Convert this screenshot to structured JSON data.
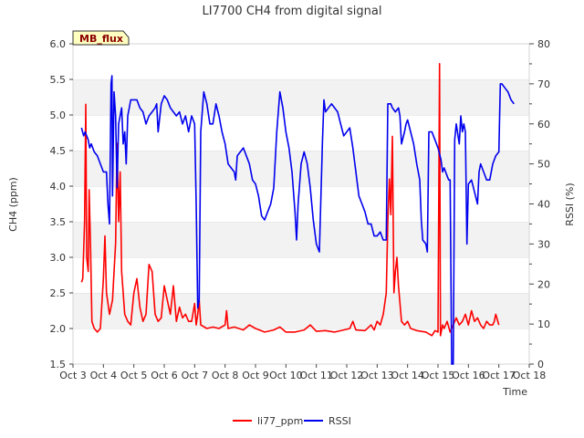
{
  "chart_data": {
    "type": "line",
    "title": "LI7700 CH4 from digital signal",
    "site_label": "MB_flux",
    "xlabel": "Time",
    "ylabel_left": "CH4 (ppm)",
    "ylabel_right": "RSSI (%)",
    "x_ticks": [
      "Oct 3",
      "Oct 4",
      "Oct 5",
      "Oct 6",
      "Oct 7",
      "Oct 8",
      "Oct 9",
      "Oct 10",
      "Oct 11",
      "Oct 12",
      "Oct 13",
      "Oct 14",
      "Oct 15",
      "Oct 16",
      "Oct 17",
      "Oct 18"
    ],
    "xlim": [
      3,
      18
    ],
    "ylim_left": [
      1.5,
      6.0
    ],
    "ylim_right": [
      0,
      80
    ],
    "y_ticks_left": [
      "1.5",
      "2.0",
      "2.5",
      "3.0",
      "3.5",
      "4.0",
      "4.5",
      "5.0",
      "5.5",
      "6.0"
    ],
    "y_ticks_right": [
      "0",
      "10",
      "20",
      "30",
      "40",
      "50",
      "60",
      "70",
      "80"
    ],
    "grid": "horizontal bands",
    "legend_position": "bottom-center",
    "series": [
      {
        "name": "li77_ppm",
        "color": "#ff0000",
        "axis": "left",
        "points": [
          [
            3.28,
            2.65
          ],
          [
            3.32,
            2.7
          ],
          [
            3.38,
            3.5
          ],
          [
            3.42,
            5.15
          ],
          [
            3.45,
            3.0
          ],
          [
            3.5,
            2.8
          ],
          [
            3.53,
            3.95
          ],
          [
            3.58,
            3.1
          ],
          [
            3.62,
            2.1
          ],
          [
            3.7,
            2.0
          ],
          [
            3.8,
            1.95
          ],
          [
            3.9,
            2.0
          ],
          [
            4.0,
            2.7
          ],
          [
            4.05,
            3.3
          ],
          [
            4.1,
            2.5
          ],
          [
            4.2,
            2.2
          ],
          [
            4.3,
            2.4
          ],
          [
            4.4,
            3.2
          ],
          [
            4.45,
            4.6
          ],
          [
            4.5,
            3.5
          ],
          [
            4.55,
            4.2
          ],
          [
            4.6,
            2.8
          ],
          [
            4.7,
            2.2
          ],
          [
            4.8,
            2.1
          ],
          [
            4.9,
            2.05
          ],
          [
            5.0,
            2.5
          ],
          [
            5.1,
            2.7
          ],
          [
            5.2,
            2.3
          ],
          [
            5.3,
            2.1
          ],
          [
            5.4,
            2.2
          ],
          [
            5.5,
            2.9
          ],
          [
            5.6,
            2.8
          ],
          [
            5.7,
            2.2
          ],
          [
            5.8,
            2.1
          ],
          [
            5.9,
            2.15
          ],
          [
            6.0,
            2.6
          ],
          [
            6.1,
            2.4
          ],
          [
            6.2,
            2.2
          ],
          [
            6.3,
            2.6
          ],
          [
            6.4,
            2.1
          ],
          [
            6.5,
            2.3
          ],
          [
            6.6,
            2.15
          ],
          [
            6.7,
            2.2
          ],
          [
            6.8,
            2.1
          ],
          [
            6.9,
            2.1
          ],
          [
            7.0,
            2.35
          ],
          [
            7.05,
            2.05
          ],
          [
            7.1,
            2.2
          ],
          [
            7.15,
            2.4
          ],
          [
            7.2,
            2.05
          ],
          [
            7.4,
            2.0
          ],
          [
            7.6,
            2.02
          ],
          [
            7.8,
            2.0
          ],
          [
            8.0,
            2.05
          ],
          [
            8.05,
            2.25
          ],
          [
            8.1,
            2.0
          ],
          [
            8.3,
            2.02
          ],
          [
            8.6,
            1.98
          ],
          [
            8.8,
            2.05
          ],
          [
            9.0,
            2.0
          ],
          [
            9.3,
            1.95
          ],
          [
            9.6,
            1.98
          ],
          [
            9.8,
            2.02
          ],
          [
            10.0,
            1.95
          ],
          [
            10.3,
            1.95
          ],
          [
            10.6,
            1.98
          ],
          [
            10.8,
            2.05
          ],
          [
            11.0,
            1.96
          ],
          [
            11.3,
            1.97
          ],
          [
            11.6,
            1.95
          ],
          [
            11.9,
            1.98
          ],
          [
            12.1,
            2.0
          ],
          [
            12.2,
            2.1
          ],
          [
            12.3,
            1.98
          ],
          [
            12.6,
            1.97
          ],
          [
            12.8,
            2.05
          ],
          [
            12.9,
            1.98
          ],
          [
            13.0,
            2.1
          ],
          [
            13.1,
            2.05
          ],
          [
            13.2,
            2.2
          ],
          [
            13.3,
            2.5
          ],
          [
            13.35,
            3.5
          ],
          [
            13.4,
            4.1
          ],
          [
            13.45,
            3.6
          ],
          [
            13.5,
            4.7
          ],
          [
            13.55,
            2.5
          ],
          [
            13.6,
            2.8
          ],
          [
            13.65,
            3.0
          ],
          [
            13.7,
            2.6
          ],
          [
            13.8,
            2.1
          ],
          [
            13.9,
            2.05
          ],
          [
            14.0,
            2.1
          ],
          [
            14.1,
            2.0
          ],
          [
            14.3,
            1.97
          ],
          [
            14.6,
            1.95
          ],
          [
            14.8,
            1.9
          ],
          [
            14.9,
            1.97
          ],
          [
            15.0,
            1.95
          ],
          [
            15.05,
            5.72
          ],
          [
            15.08,
            1.9
          ],
          [
            15.15,
            2.05
          ],
          [
            15.2,
            2.0
          ],
          [
            15.3,
            2.1
          ],
          [
            15.4,
            1.95
          ],
          [
            15.5,
            2.05
          ],
          [
            15.6,
            2.15
          ],
          [
            15.7,
            2.05
          ],
          [
            15.8,
            2.1
          ],
          [
            15.9,
            2.2
          ],
          [
            16.0,
            2.05
          ],
          [
            16.1,
            2.25
          ],
          [
            16.2,
            2.1
          ],
          [
            16.3,
            2.15
          ],
          [
            16.4,
            2.05
          ],
          [
            16.5,
            2.0
          ],
          [
            16.6,
            2.1
          ],
          [
            16.7,
            2.05
          ],
          [
            16.8,
            2.05
          ],
          [
            16.85,
            2.1
          ],
          [
            16.9,
            2.2
          ],
          [
            17.0,
            2.05
          ]
        ]
      },
      {
        "name": "RSSI",
        "color": "#0000ee",
        "axis": "right",
        "points": [
          [
            3.28,
            59
          ],
          [
            3.35,
            57
          ],
          [
            3.4,
            58
          ],
          [
            3.5,
            56
          ],
          [
            3.55,
            54
          ],
          [
            3.6,
            55
          ],
          [
            3.7,
            53
          ],
          [
            3.8,
            52
          ],
          [
            3.9,
            50
          ],
          [
            4.0,
            48
          ],
          [
            4.1,
            48
          ],
          [
            4.15,
            40
          ],
          [
            4.2,
            35
          ],
          [
            4.25,
            70
          ],
          [
            4.28,
            72
          ],
          [
            4.3,
            42
          ],
          [
            4.35,
            68
          ],
          [
            4.4,
            62
          ],
          [
            4.45,
            44
          ],
          [
            4.5,
            60
          ],
          [
            4.6,
            64
          ],
          [
            4.65,
            55
          ],
          [
            4.7,
            58
          ],
          [
            4.75,
            50
          ],
          [
            4.8,
            62
          ],
          [
            4.9,
            66
          ],
          [
            5.0,
            66
          ],
          [
            5.1,
            66
          ],
          [
            5.2,
            64
          ],
          [
            5.3,
            63
          ],
          [
            5.4,
            60
          ],
          [
            5.5,
            62
          ],
          [
            5.6,
            63
          ],
          [
            5.7,
            64
          ],
          [
            5.75,
            65
          ],
          [
            5.8,
            58
          ],
          [
            5.9,
            65
          ],
          [
            6.0,
            67
          ],
          [
            6.1,
            66
          ],
          [
            6.2,
            64
          ],
          [
            6.3,
            63
          ],
          [
            6.4,
            62
          ],
          [
            6.5,
            63
          ],
          [
            6.6,
            60
          ],
          [
            6.7,
            62
          ],
          [
            6.8,
            58
          ],
          [
            6.9,
            62
          ],
          [
            7.0,
            60
          ],
          [
            7.05,
            40
          ],
          [
            7.1,
            14
          ],
          [
            7.15,
            16
          ],
          [
            7.2,
            58
          ],
          [
            7.3,
            68
          ],
          [
            7.4,
            65
          ],
          [
            7.5,
            60
          ],
          [
            7.6,
            60
          ],
          [
            7.7,
            65
          ],
          [
            7.8,
            62
          ],
          [
            7.9,
            58
          ],
          [
            8.0,
            55
          ],
          [
            8.1,
            50
          ],
          [
            8.2,
            49
          ],
          [
            8.3,
            48
          ],
          [
            8.35,
            46
          ],
          [
            8.4,
            52
          ],
          [
            8.5,
            53
          ],
          [
            8.6,
            54
          ],
          [
            8.7,
            52
          ],
          [
            8.8,
            50
          ],
          [
            8.9,
            46
          ],
          [
            9.0,
            45
          ],
          [
            9.1,
            42
          ],
          [
            9.2,
            37
          ],
          [
            9.3,
            36
          ],
          [
            9.4,
            38
          ],
          [
            9.5,
            40
          ],
          [
            9.6,
            44
          ],
          [
            9.7,
            58
          ],
          [
            9.8,
            68
          ],
          [
            9.9,
            64
          ],
          [
            10.0,
            58
          ],
          [
            10.1,
            54
          ],
          [
            10.2,
            48
          ],
          [
            10.3,
            38
          ],
          [
            10.35,
            31
          ],
          [
            10.4,
            40
          ],
          [
            10.5,
            50
          ],
          [
            10.6,
            53
          ],
          [
            10.7,
            50
          ],
          [
            10.8,
            44
          ],
          [
            10.9,
            36
          ],
          [
            11.0,
            30
          ],
          [
            11.1,
            28
          ],
          [
            11.2,
            55
          ],
          [
            11.25,
            66
          ],
          [
            11.3,
            63
          ],
          [
            11.4,
            64
          ],
          [
            11.5,
            65
          ],
          [
            11.6,
            64
          ],
          [
            11.7,
            63
          ],
          [
            11.8,
            60
          ],
          [
            11.9,
            57
          ],
          [
            12.0,
            58
          ],
          [
            12.1,
            59
          ],
          [
            12.2,
            54
          ],
          [
            12.3,
            48
          ],
          [
            12.4,
            42
          ],
          [
            12.5,
            40
          ],
          [
            12.6,
            38
          ],
          [
            12.7,
            35
          ],
          [
            12.8,
            35
          ],
          [
            12.9,
            32
          ],
          [
            13.0,
            32
          ],
          [
            13.1,
            33
          ],
          [
            13.2,
            31
          ],
          [
            13.3,
            31
          ],
          [
            13.35,
            65
          ],
          [
            13.45,
            65
          ],
          [
            13.5,
            64
          ],
          [
            13.6,
            63
          ],
          [
            13.7,
            64
          ],
          [
            13.75,
            62
          ],
          [
            13.8,
            55
          ],
          [
            13.9,
            58
          ],
          [
            13.95,
            60
          ],
          [
            14.0,
            61
          ],
          [
            14.1,
            58
          ],
          [
            14.2,
            55
          ],
          [
            14.3,
            50
          ],
          [
            14.4,
            46
          ],
          [
            14.45,
            36
          ],
          [
            14.5,
            31
          ],
          [
            14.6,
            30
          ],
          [
            14.65,
            28
          ],
          [
            14.7,
            58
          ],
          [
            14.8,
            58
          ],
          [
            14.9,
            56
          ],
          [
            15.0,
            54
          ],
          [
            15.1,
            51
          ],
          [
            15.15,
            48
          ],
          [
            15.2,
            49
          ],
          [
            15.3,
            47
          ],
          [
            15.35,
            46
          ],
          [
            15.4,
            46
          ],
          [
            15.45,
            0
          ],
          [
            15.5,
            0
          ],
          [
            15.55,
            56
          ],
          [
            15.6,
            60
          ],
          [
            15.7,
            55
          ],
          [
            15.75,
            62
          ],
          [
            15.8,
            58
          ],
          [
            15.85,
            60
          ],
          [
            15.9,
            58
          ],
          [
            15.95,
            30
          ],
          [
            16.0,
            45
          ],
          [
            16.1,
            46
          ],
          [
            16.2,
            43
          ],
          [
            16.3,
            40
          ],
          [
            16.35,
            48
          ],
          [
            16.4,
            50
          ],
          [
            16.5,
            48
          ],
          [
            16.6,
            46
          ],
          [
            16.7,
            46
          ],
          [
            16.8,
            50
          ],
          [
            16.9,
            52
          ],
          [
            17.0,
            53
          ],
          [
            17.05,
            70
          ],
          [
            17.1,
            70
          ],
          [
            17.2,
            69
          ],
          [
            17.3,
            68
          ],
          [
            17.4,
            66
          ],
          [
            17.5,
            65
          ]
        ]
      }
    ]
  }
}
